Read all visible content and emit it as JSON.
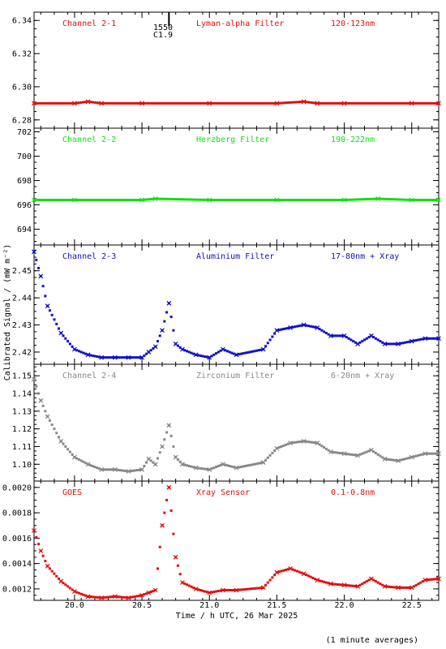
{
  "page": {
    "ylabel": "Calibrated Signal / (mW m⁻²)",
    "xlabel": "Time / h UTC, 26 Mar 2025",
    "footnote": "(1 minute averages)",
    "marker_label_top": "1550",
    "marker_label_bottom": "C1.9"
  },
  "chart_data": [
    {
      "type": "scatter",
      "channel": "Channel 2-1",
      "filter": "Lyman-alpha Filter",
      "band": "120-123nm",
      "color": "#e01010",
      "ylim": [
        6.275,
        6.345
      ],
      "yticks": [
        6.28,
        6.3,
        6.32,
        6.34
      ],
      "ytick_labels": [
        "6.28",
        "6.30",
        "6.32",
        "6.34"
      ],
      "x": [
        19.7,
        20.0,
        20.1,
        20.2,
        20.5,
        21.0,
        21.5,
        21.7,
        21.8,
        22.0,
        22.5,
        22.7
      ],
      "values": [
        6.29,
        6.29,
        6.291,
        6.29,
        6.29,
        6.29,
        6.29,
        6.291,
        6.29,
        6.29,
        6.29,
        6.29
      ]
    },
    {
      "type": "scatter",
      "channel": "Channel 2-2",
      "filter": "Herzberg Filter",
      "band": "190-222nm",
      "color": "#10e010",
      "ylim": [
        692.7,
        702.3
      ],
      "yticks": [
        694,
        696,
        698,
        700,
        702
      ],
      "ytick_labels": [
        "694",
        "696",
        "698",
        "700",
        "702"
      ],
      "x": [
        19.7,
        20.0,
        20.5,
        20.6,
        21.0,
        21.5,
        22.0,
        22.25,
        22.5,
        22.7
      ],
      "values": [
        696.4,
        696.4,
        696.4,
        696.5,
        696.4,
        696.4,
        696.4,
        696.5,
        696.4,
        696.4
      ]
    },
    {
      "type": "scatter",
      "channel": "Channel 2-3",
      "filter": "Aluminium Filter",
      "band": "17-80nm + Xray",
      "color": "#1010c8",
      "ylim": [
        2.4155,
        2.4595
      ],
      "yticks": [
        2.42,
        2.43,
        2.44,
        2.45
      ],
      "ytick_labels": [
        "2.42",
        "2.43",
        "2.44",
        "2.45"
      ],
      "x": [
        19.7,
        19.75,
        19.8,
        19.9,
        20.0,
        20.1,
        20.2,
        20.3,
        20.4,
        20.5,
        20.55,
        20.6,
        20.65,
        20.7,
        20.75,
        20.8,
        20.9,
        21.0,
        21.1,
        21.2,
        21.4,
        21.5,
        21.6,
        21.7,
        21.8,
        21.9,
        22.0,
        22.1,
        22.2,
        22.3,
        22.4,
        22.5,
        22.6,
        22.7
      ],
      "values": [
        2.457,
        2.448,
        2.437,
        2.427,
        2.421,
        2.419,
        2.418,
        2.418,
        2.418,
        2.418,
        2.42,
        2.422,
        2.428,
        2.438,
        2.423,
        2.421,
        2.419,
        2.418,
        2.421,
        2.419,
        2.421,
        2.428,
        2.429,
        2.43,
        2.429,
        2.426,
        2.426,
        2.423,
        2.426,
        2.423,
        2.423,
        2.424,
        2.425,
        2.425
      ]
    },
    {
      "type": "scatter",
      "channel": "Channel 2-4",
      "filter": "Zirconium Filter",
      "band": "6-20nm + Xray",
      "color": "#888888",
      "ylim": [
        1.0905,
        1.1565
      ],
      "yticks": [
        1.1,
        1.11,
        1.12,
        1.13,
        1.14,
        1.15
      ],
      "ytick_labels": [
        "1.10",
        "1.11",
        "1.12",
        "1.13",
        "1.14",
        "1.15"
      ],
      "x": [
        19.7,
        19.75,
        19.8,
        19.9,
        20.0,
        20.1,
        20.2,
        20.3,
        20.4,
        20.5,
        20.55,
        20.6,
        20.65,
        20.7,
        20.75,
        20.8,
        20.9,
        21.0,
        21.1,
        21.2,
        21.4,
        21.5,
        21.6,
        21.7,
        21.8,
        21.9,
        22.0,
        22.1,
        22.2,
        22.3,
        22.4,
        22.5,
        22.6,
        22.7
      ],
      "values": [
        1.148,
        1.136,
        1.127,
        1.113,
        1.104,
        1.1,
        1.097,
        1.097,
        1.096,
        1.097,
        1.103,
        1.1,
        1.11,
        1.122,
        1.104,
        1.1,
        1.098,
        1.097,
        1.1,
        1.098,
        1.101,
        1.109,
        1.112,
        1.113,
        1.112,
        1.107,
        1.106,
        1.105,
        1.108,
        1.103,
        1.102,
        1.104,
        1.106,
        1.106
      ]
    },
    {
      "type": "scatter",
      "channel": "GOES",
      "filter": "Xray Sensor",
      "band": "0.1-0.8nm",
      "color": "#e01010",
      "ylim": [
        0.00111,
        0.00205
      ],
      "yticks": [
        0.0012,
        0.0014,
        0.0016,
        0.0018,
        0.002
      ],
      "ytick_labels": [
        "0.0012",
        "0.0014",
        "0.0016",
        "0.0018",
        "0.0020"
      ],
      "x": [
        19.7,
        19.75,
        19.8,
        19.9,
        20.0,
        20.1,
        20.2,
        20.3,
        20.4,
        20.5,
        20.55,
        20.6,
        20.65,
        20.7,
        20.75,
        20.8,
        20.9,
        21.0,
        21.1,
        21.2,
        21.4,
        21.5,
        21.6,
        21.7,
        21.8,
        21.9,
        22.0,
        22.1,
        22.2,
        22.3,
        22.4,
        22.5,
        22.6,
        22.7
      ],
      "values": [
        0.00166,
        0.0015,
        0.00138,
        0.00126,
        0.00118,
        0.00114,
        0.00113,
        0.00114,
        0.00113,
        0.00115,
        0.00117,
        0.00119,
        0.0017,
        0.002,
        0.00145,
        0.00125,
        0.0012,
        0.00117,
        0.00119,
        0.00119,
        0.00121,
        0.00133,
        0.00136,
        0.00132,
        0.00127,
        0.00124,
        0.00123,
        0.00122,
        0.00128,
        0.00122,
        0.00121,
        0.00121,
        0.00127,
        0.00128
      ]
    }
  ],
  "x_axis": {
    "xlim": [
      19.7,
      22.7
    ],
    "ticks": [
      20.0,
      20.5,
      21.0,
      21.5,
      22.0,
      22.5
    ],
    "tick_labels": [
      "20.0",
      "20.5",
      "21.0",
      "21.5",
      "22.0",
      "22.5"
    ],
    "event_marker_x": 20.7
  }
}
